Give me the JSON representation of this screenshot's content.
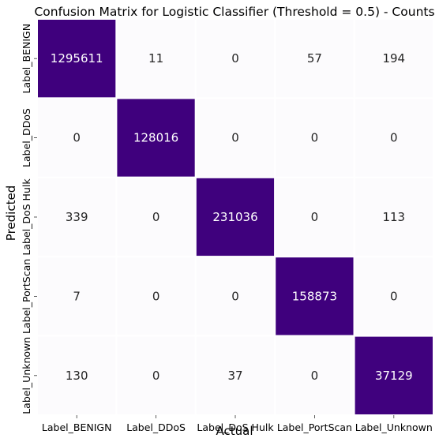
{
  "chart_data": {
    "type": "heatmap",
    "title": "Confusion Matrix for Logistic Classifier (Threshold = 0.5) - Counts",
    "xlabel": "Actual",
    "ylabel": "Predicted",
    "x_categories": [
      "Label_BENIGN",
      "Label_DDoS",
      "Label_DoS Hulk",
      "Label_PortScan",
      "Label_Unknown"
    ],
    "y_categories": [
      "Label_BENIGN",
      "Label_DDoS",
      "Label_DoS Hulk",
      "Label_PortScan",
      "Label_Unknown"
    ],
    "values": [
      [
        1295611,
        11,
        0,
        57,
        194
      ],
      [
        0,
        128016,
        0,
        0,
        0
      ],
      [
        339,
        0,
        231036,
        0,
        113
      ],
      [
        7,
        0,
        0,
        158873,
        0
      ],
      [
        130,
        0,
        37,
        0,
        37129
      ]
    ],
    "colormap": "Purples",
    "colorbar": false,
    "grid": false
  }
}
